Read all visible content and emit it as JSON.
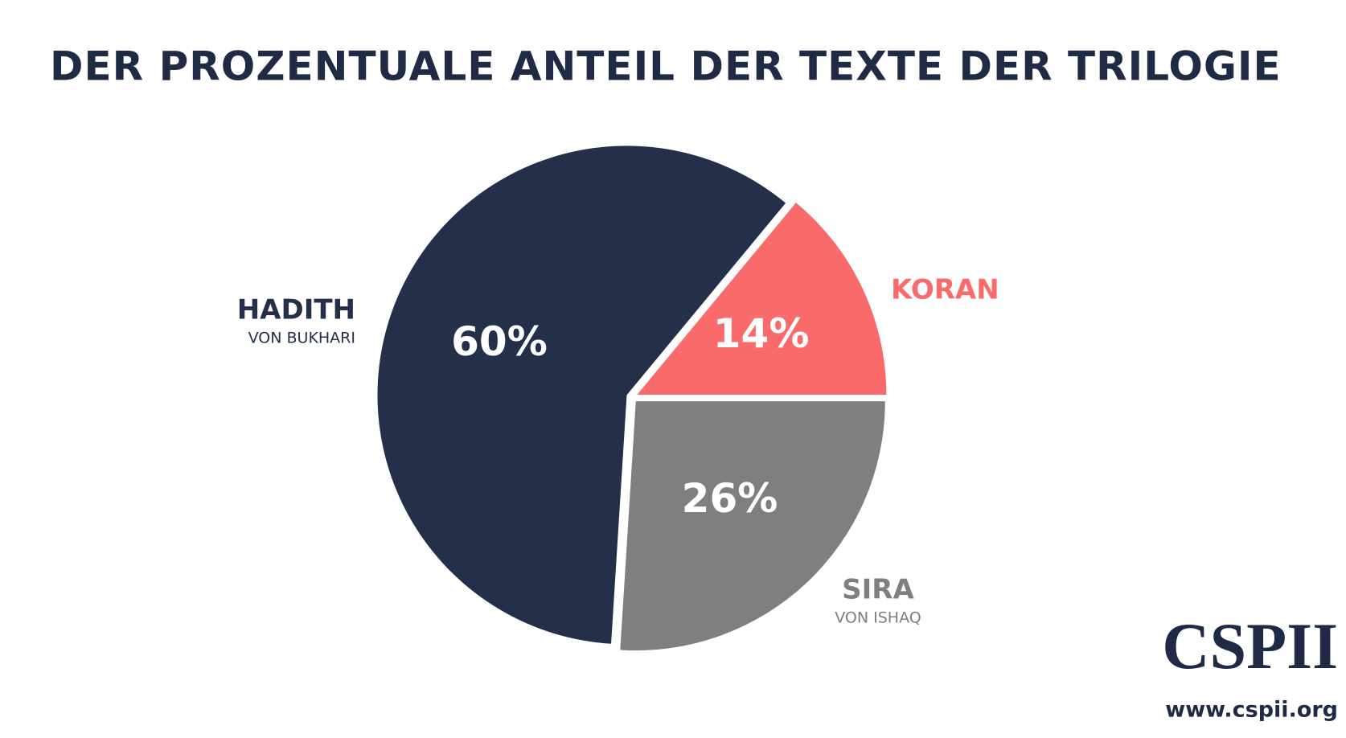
{
  "chart_data": {
    "type": "pie",
    "title": "DER PROZENTUALE ANTEIL DER TEXTE DER TRILOGIE",
    "categories": [
      "KORAN",
      "SIRA",
      "HADITH"
    ],
    "subtitles": [
      null,
      "VON ISHAQ",
      "VON BUKHARI"
    ],
    "values": [
      14,
      26,
      60
    ],
    "value_labels": [
      "14%",
      "26%",
      "60%"
    ],
    "colors": [
      "#f96b6b",
      "#7f7f7f",
      "#243049"
    ],
    "label_colors": [
      "#f96b6b",
      "#7f7f7f",
      "#243049"
    ]
  },
  "logo": {
    "name": "CSPII",
    "url": "www.cspii.org"
  }
}
